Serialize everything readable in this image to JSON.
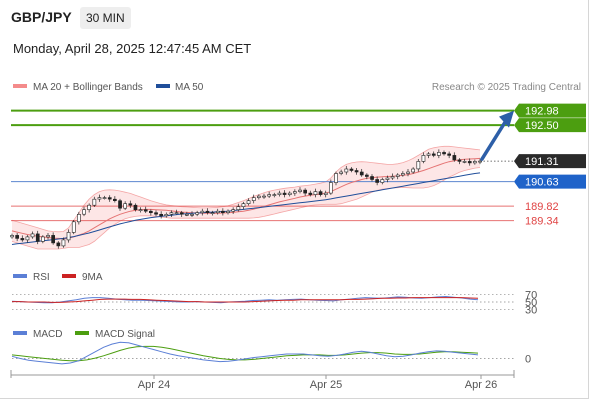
{
  "header": {
    "pair": "GBP/JPY",
    "timeframe": "30 MIN",
    "datetime": "Monday, April 28, 2025 12:47:45 AM CET"
  },
  "credit": "Research © 2025 Trading Central",
  "colors": {
    "bollinger": "#f4a6a6",
    "bollinger_fill": "#fde3e3",
    "ma50": "#1f4e9a",
    "target_green": "#4c9e10",
    "support_red": "#e04444",
    "rsi": "#5b7fd6",
    "rsi_ma": "#cc2222",
    "macd": "#5b7fd6",
    "macd_signal": "#4c9e10",
    "candle": "#222222"
  },
  "chart_data": [
    {
      "type": "candlestick",
      "name": "price",
      "x_ticks": [
        "Apr 24",
        "Apr 25",
        "Apr 26"
      ],
      "ylim": [
        188.3,
        193.4
      ],
      "legend": [
        {
          "label": "MA 20 + Bollinger Bands",
          "color": "#f48b8b"
        },
        {
          "label": "MA 50",
          "color": "#1f4e9a"
        }
      ],
      "close": [
        188.85,
        188.75,
        188.7,
        188.8,
        188.9,
        188.65,
        188.8,
        188.85,
        188.6,
        188.5,
        188.7,
        188.95,
        189.3,
        189.55,
        189.7,
        189.85,
        190.05,
        190.1,
        190.1,
        190.05,
        190.0,
        189.75,
        189.9,
        189.85,
        189.7,
        189.7,
        189.65,
        189.6,
        189.55,
        189.5,
        189.55,
        189.6,
        189.6,
        189.55,
        189.55,
        189.55,
        189.6,
        189.65,
        189.6,
        189.6,
        189.65,
        189.6,
        189.65,
        189.7,
        189.8,
        189.9,
        190.0,
        190.1,
        190.15,
        190.15,
        190.2,
        190.2,
        190.25,
        190.2,
        190.25,
        190.3,
        190.35,
        190.25,
        190.2,
        190.3,
        190.2,
        190.25,
        190.6,
        190.9,
        190.95,
        191.05,
        191.0,
        190.95,
        190.85,
        190.8,
        190.7,
        190.6,
        190.7,
        190.75,
        190.8,
        190.85,
        190.9,
        190.95,
        191.05,
        191.3,
        191.5,
        191.55,
        191.5,
        191.6,
        191.55,
        191.5,
        191.35,
        191.3,
        191.3,
        191.25,
        191.3,
        191.31
      ],
      "ma20": [
        189.0,
        188.96,
        188.92,
        188.88,
        188.85,
        188.82,
        188.8,
        188.78,
        188.76,
        188.75,
        188.74,
        188.76,
        188.8,
        188.86,
        188.92,
        189.0,
        189.1,
        189.2,
        189.3,
        189.4,
        189.48,
        189.55,
        189.6,
        189.65,
        189.68,
        189.7,
        189.71,
        189.71,
        189.7,
        189.69,
        189.68,
        189.66,
        189.64,
        189.62,
        189.61,
        189.6,
        189.59,
        189.58,
        189.58,
        189.58,
        189.58,
        189.59,
        189.6,
        189.61,
        189.63,
        189.65,
        189.68,
        189.72,
        189.76,
        189.81,
        189.86,
        189.91,
        189.96,
        190.0,
        190.04,
        190.08,
        190.12,
        190.15,
        190.18,
        190.2,
        190.22,
        190.25,
        190.3,
        190.38,
        190.46,
        190.54,
        190.6,
        190.65,
        190.7,
        190.74,
        190.76,
        190.78,
        190.79,
        190.8,
        190.81,
        190.82,
        190.84,
        190.86,
        190.9,
        190.95,
        191.0,
        191.06,
        191.12,
        191.18,
        191.24,
        191.29,
        191.32,
        191.35,
        191.37,
        191.38,
        191.39,
        191.4
      ],
      "bb_upper": [
        189.35,
        189.3,
        189.25,
        189.2,
        189.15,
        189.1,
        189.05,
        189.0,
        188.98,
        188.97,
        188.98,
        189.1,
        189.35,
        189.6,
        189.85,
        190.05,
        190.2,
        190.3,
        190.35,
        190.36,
        190.35,
        190.32,
        190.28,
        190.24,
        190.18,
        190.12,
        190.06,
        190.0,
        189.95,
        189.9,
        189.86,
        189.84,
        189.82,
        189.8,
        189.79,
        189.78,
        189.77,
        189.76,
        189.76,
        189.77,
        189.78,
        189.8,
        189.83,
        189.88,
        189.94,
        190.0,
        190.07,
        190.14,
        190.2,
        190.26,
        190.31,
        190.35,
        190.38,
        190.41,
        190.43,
        190.45,
        190.48,
        190.5,
        190.52,
        190.55,
        190.58,
        190.62,
        190.75,
        190.95,
        191.1,
        191.2,
        191.25,
        191.28,
        191.29,
        191.28,
        191.26,
        191.24,
        191.22,
        191.2,
        191.2,
        191.22,
        191.26,
        191.32,
        191.4,
        191.5,
        191.6,
        191.7,
        191.75,
        191.78,
        191.8,
        191.8,
        191.78,
        191.76,
        191.74,
        191.72,
        191.7,
        191.68
      ],
      "bb_lower": [
        188.65,
        188.6,
        188.55,
        188.5,
        188.45,
        188.4,
        188.4,
        188.4,
        188.4,
        188.4,
        188.42,
        188.45,
        188.45,
        188.45,
        188.5,
        188.55,
        188.65,
        188.8,
        188.95,
        189.1,
        189.22,
        189.32,
        189.4,
        189.45,
        189.48,
        189.5,
        189.5,
        189.5,
        189.48,
        189.46,
        189.44,
        189.42,
        189.42,
        189.42,
        189.42,
        189.42,
        189.42,
        189.42,
        189.42,
        189.42,
        189.42,
        189.42,
        189.42,
        189.42,
        189.42,
        189.42,
        189.42,
        189.43,
        189.45,
        189.48,
        189.52,
        189.56,
        189.6,
        189.64,
        189.68,
        189.72,
        189.76,
        189.8,
        189.84,
        189.86,
        189.87,
        189.88,
        189.88,
        189.88,
        189.9,
        189.95,
        190.0,
        190.05,
        190.12,
        190.2,
        190.28,
        190.34,
        190.38,
        190.4,
        190.42,
        190.43,
        190.44,
        190.43,
        190.42,
        190.42,
        190.42,
        190.45,
        190.5,
        190.58,
        190.68,
        190.78,
        190.86,
        190.94,
        191.0,
        191.04,
        191.08,
        191.1
      ],
      "ma50": [
        188.55,
        188.57,
        188.59,
        188.61,
        188.63,
        188.65,
        188.67,
        188.69,
        188.71,
        188.73,
        188.75,
        188.78,
        188.81,
        188.85,
        188.89,
        188.93,
        188.98,
        189.03,
        189.08,
        189.13,
        189.18,
        189.23,
        189.27,
        189.31,
        189.35,
        189.38,
        189.41,
        189.44,
        189.46,
        189.48,
        189.5,
        189.52,
        189.54,
        189.56,
        189.57,
        189.58,
        189.59,
        189.6,
        189.61,
        189.62,
        189.63,
        189.64,
        189.65,
        189.67,
        189.69,
        189.71,
        189.73,
        189.75,
        189.77,
        189.79,
        189.81,
        189.83,
        189.85,
        189.87,
        189.89,
        189.91,
        189.93,
        189.95,
        189.97,
        189.99,
        190.01,
        190.03,
        190.06,
        190.09,
        190.12,
        190.15,
        190.18,
        190.21,
        190.24,
        190.27,
        190.3,
        190.33,
        190.36,
        190.39,
        190.42,
        190.45,
        190.48,
        190.51,
        190.54,
        190.57,
        190.6,
        190.63,
        190.66,
        190.69,
        190.72,
        190.75,
        190.78,
        190.81,
        190.84,
        190.87,
        190.9,
        190.92
      ],
      "levels": [
        {
          "value": 192.98,
          "label": "192.98",
          "kind": "target"
        },
        {
          "value": 192.5,
          "label": "192.50",
          "kind": "target"
        },
        {
          "value": 191.31,
          "label": "191.31",
          "kind": "last"
        },
        {
          "value": 190.63,
          "label": "190.63",
          "kind": "ma50"
        },
        {
          "value": 189.82,
          "label": "189.82",
          "kind": "support"
        },
        {
          "value": 189.34,
          "label": "189.34",
          "kind": "support"
        }
      ]
    },
    {
      "type": "line",
      "name": "rsi_panel",
      "legend": [
        {
          "label": "RSI",
          "color": "#5b7fd6"
        },
        {
          "label": "9MA",
          "color": "#cc2222"
        }
      ],
      "ylim": [
        20,
        80
      ],
      "y_ticks": [
        {
          "value": 70,
          "label": "70"
        },
        {
          "value": 50,
          "label": "50"
        },
        {
          "value": 30,
          "label": "30"
        }
      ],
      "series": [
        {
          "name": "RSI",
          "values": [
            52,
            51,
            50,
            49,
            48,
            48,
            50,
            53,
            56,
            60,
            62,
            62,
            60,
            58,
            56,
            55,
            55,
            54,
            53,
            52,
            51,
            50,
            50,
            51,
            50,
            49,
            48,
            50,
            51,
            52,
            54,
            55,
            56,
            55,
            56,
            57,
            58,
            56,
            55,
            54,
            53,
            56,
            58,
            60,
            62,
            61,
            60,
            62,
            64,
            63,
            61,
            60,
            62,
            64,
            65,
            63,
            61,
            58,
            56
          ]
        },
        {
          "name": "9MA",
          "values": [
            51,
            51,
            50,
            50,
            50,
            49,
            49,
            50,
            51,
            53,
            55,
            57,
            58,
            58,
            58,
            57,
            57,
            56,
            55,
            54,
            53,
            52,
            51,
            51,
            50,
            50,
            50,
            50,
            50,
            50,
            51,
            52,
            53,
            54,
            55,
            55,
            56,
            56,
            56,
            56,
            56,
            56,
            57,
            57,
            58,
            59,
            60,
            60,
            61,
            61,
            62,
            62,
            62,
            62,
            62,
            62,
            62,
            61,
            60
          ]
        }
      ]
    },
    {
      "type": "line",
      "name": "macd_panel",
      "legend": [
        {
          "label": "MACD",
          "color": "#5b7fd6"
        },
        {
          "label": "MACD Signal",
          "color": "#4c9e10"
        }
      ],
      "ylim": [
        -0.3,
        0.5
      ],
      "y_ticks": [
        {
          "value": 0,
          "label": "0"
        }
      ],
      "series": [
        {
          "name": "MACD",
          "values": [
            0.05,
            0.0,
            -0.04,
            -0.06,
            -0.08,
            -0.1,
            -0.12,
            -0.1,
            -0.05,
            0.05,
            0.15,
            0.25,
            0.32,
            0.36,
            0.35,
            0.3,
            0.25,
            0.2,
            0.15,
            0.1,
            0.06,
            0.03,
            0.0,
            -0.03,
            -0.05,
            -0.07,
            -0.06,
            -0.04,
            -0.01,
            0.02,
            0.04,
            0.06,
            0.08,
            0.1,
            0.1,
            0.1,
            0.08,
            0.06,
            0.05,
            0.07,
            0.1,
            0.14,
            0.16,
            0.14,
            0.1,
            0.06,
            0.04,
            0.05,
            0.08,
            0.12,
            0.15,
            0.17,
            0.16,
            0.14,
            0.12,
            0.1,
            0.08
          ]
        },
        {
          "name": "MACD Signal",
          "values": [
            0.08,
            0.06,
            0.04,
            0.02,
            0.0,
            -0.02,
            -0.04,
            -0.05,
            -0.05,
            -0.03,
            0.01,
            0.06,
            0.12,
            0.18,
            0.23,
            0.26,
            0.27,
            0.27,
            0.25,
            0.22,
            0.18,
            0.14,
            0.1,
            0.06,
            0.03,
            0.0,
            -0.02,
            -0.03,
            -0.03,
            -0.02,
            0.0,
            0.02,
            0.04,
            0.06,
            0.07,
            0.08,
            0.08,
            0.08,
            0.07,
            0.07,
            0.08,
            0.1,
            0.12,
            0.13,
            0.13,
            0.12,
            0.1,
            0.09,
            0.09,
            0.1,
            0.12,
            0.14,
            0.15,
            0.15,
            0.14,
            0.13,
            0.12
          ]
        }
      ]
    }
  ]
}
